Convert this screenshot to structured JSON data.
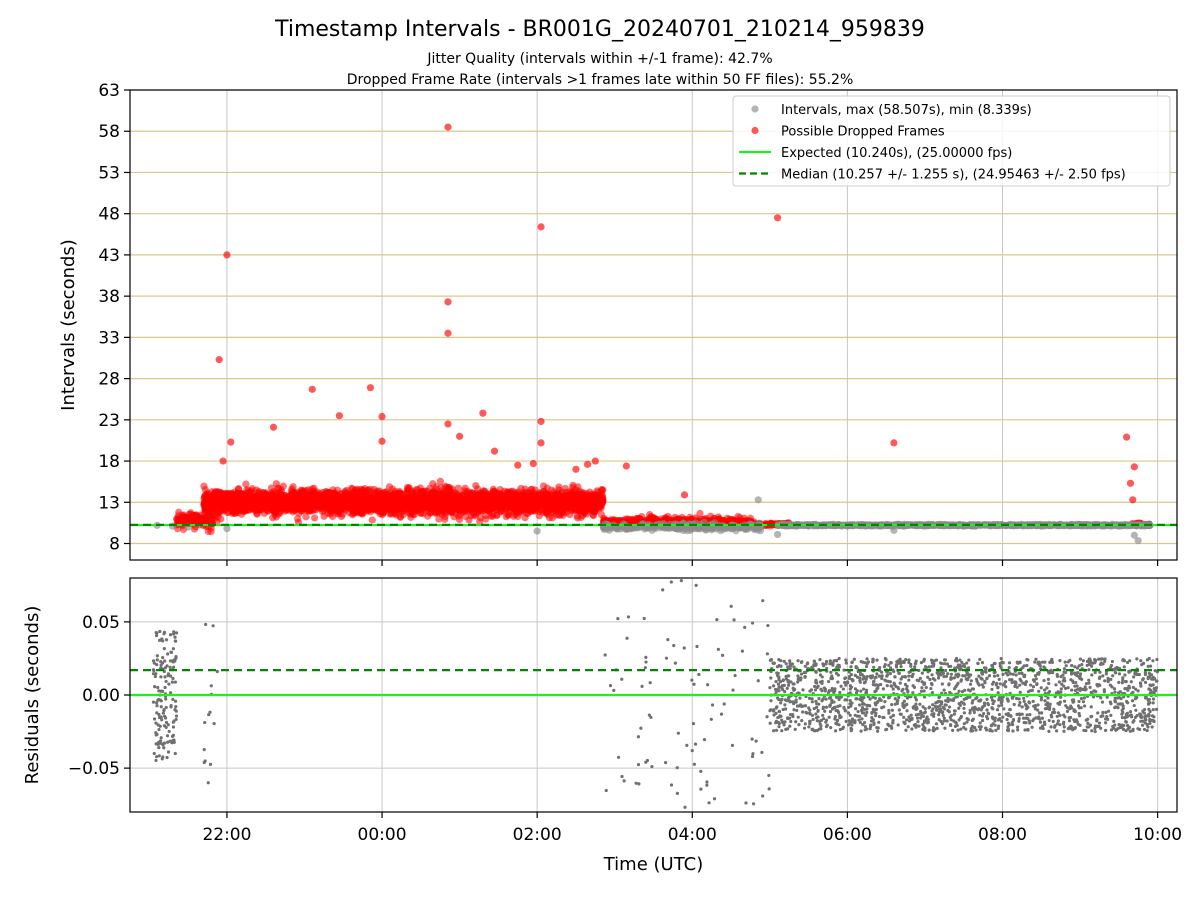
{
  "chart_data": [
    {
      "type": "scatter",
      "title": "Timestamp Intervals - BR001G_20240701_210214_959839",
      "subtitle_lines": [
        "Jitter Quality (intervals within +/-1 frame): 42.7%",
        "Dropped Frame Rate (intervals >1 frames late within 50 FF files): 55.2%"
      ],
      "ylabel": "Intervals (seconds)",
      "ylim": [
        6,
        63
      ],
      "yticks": [
        8,
        13,
        18,
        23,
        28,
        33,
        38,
        43,
        48,
        53,
        58,
        63
      ],
      "xlim_hours": [
        -3.25,
        10.25
      ],
      "xticks_hours": [
        -2,
        0,
        2,
        4,
        6,
        8,
        10
      ],
      "xtick_labels": [
        "22:00",
        "00:00",
        "02:00",
        "04:00",
        "06:00",
        "08:00",
        "10:00"
      ],
      "grid": true,
      "legend_placement": "top-right",
      "colors": {
        "intervals": "#8c8c8c",
        "dropped": "#ff0000",
        "expected": "#22ee22",
        "median": "#008800"
      },
      "legend": [
        {
          "label": "Intervals, max (58.507s), min (8.339s)",
          "kind": "marker",
          "color": "#8c8c8c"
        },
        {
          "label": "Possible Dropped Frames",
          "kind": "marker",
          "color": "#ff0000"
        },
        {
          "label": "Expected (10.240s), (25.00000 fps)",
          "kind": "solid",
          "color": "#22ee22"
        },
        {
          "label": "Median (10.257 +/- 1.255 s), (24.95463 +/- 2.50 fps)",
          "kind": "dashed",
          "color": "#008800"
        }
      ],
      "expected_line": 10.24,
      "median_line": 10.257,
      "series": [
        {
          "name": "Intervals, max (58.507s), min (8.339s)",
          "x_hours": [
            -2.9,
            -2.7,
            -2.5,
            -2.0,
            2.0,
            2.95,
            3.3,
            3.6,
            3.9,
            4.2,
            4.5,
            4.8,
            4.85,
            5.1,
            5.5,
            6.0,
            6.5,
            6.6,
            7.0,
            7.5,
            8.0,
            8.5,
            9.0,
            9.5,
            9.7,
            9.75,
            9.9
          ],
          "y": [
            10.2,
            10.1,
            10.0,
            9.8,
            9.5,
            10.0,
            9.9,
            10.1,
            9.9,
            10.0,
            10.1,
            9.7,
            13.3,
            9.1,
            10.2,
            10.1,
            10.2,
            9.6,
            10.2,
            10.1,
            10.2,
            10.1,
            10.2,
            10.1,
            9.0,
            8.34,
            10.2
          ]
        },
        {
          "name": "Possible Dropped Frames",
          "x_hours": [
            -2.1,
            -2.0,
            -2.05,
            -1.95,
            0.85,
            0.85,
            0.85,
            0.85,
            2.05,
            2.05,
            2.05,
            -1.4,
            -0.9,
            -0.55,
            -0.15,
            0,
            0,
            1.0,
            1.3,
            1.45,
            1.75,
            1.95,
            2.5,
            2.65,
            2.75,
            3.15,
            3.9,
            5.1,
            6.6,
            9.6,
            9.7,
            9.65,
            9.68
          ],
          "y": [
            30.3,
            43.0,
            18.0,
            20.3,
            58.5,
            37.3,
            33.5,
            22.5,
            46.4,
            22.8,
            20.2,
            22.1,
            26.7,
            23.5,
            26.9,
            23.4,
            20.4,
            21.0,
            23.8,
            19.2,
            17.5,
            17.7,
            17.0,
            17.6,
            18.0,
            17.4,
            13.9,
            47.5,
            20.2,
            20.9,
            17.3,
            15.3,
            13.3
          ]
        }
      ],
      "clusters": [
        {
          "series": "Possible Dropped Frames",
          "x_range_hours": [
            -2.3,
            2.85
          ],
          "y_center": 13.0,
          "y_spread": 1.3,
          "count": 3300
        },
        {
          "series": "Possible Dropped Frames",
          "x_range_hours": [
            -2.65,
            -2.15
          ],
          "y_center": 10.8,
          "y_spread": 0.8,
          "count": 120
        },
        {
          "series": "Possible Dropped Frames",
          "x_range_hours": [
            2.85,
            4.8
          ],
          "y_center": 10.6,
          "y_spread": 0.5,
          "count": 420
        },
        {
          "series": "Possible Dropped Frames",
          "x_range_hours": [
            4.8,
            5.25
          ],
          "y_center": 10.3,
          "y_spread": 0.2,
          "count": 80
        },
        {
          "series": "Possible Dropped Frames",
          "x_range_hours": [
            9.65,
            9.9
          ],
          "y_center": 10.3,
          "y_spread": 0.15,
          "count": 40
        },
        {
          "series": "Intervals, max (58.507s), min (8.339s)",
          "x_range_hours": [
            2.85,
            4.9
          ],
          "y_center": 10.0,
          "y_spread": 0.35,
          "count": 260
        },
        {
          "series": "Intervals, max (58.507s), min (8.339s)",
          "x_range_hours": [
            5.1,
            9.9
          ],
          "y_center": 10.22,
          "y_spread": 0.08,
          "count": 900
        }
      ]
    },
    {
      "type": "scatter",
      "ylabel": "Residuals (seconds)",
      "xlabel": "Time (UTC)",
      "ylim": [
        -0.08,
        0.08
      ],
      "yticks": [
        -0.05,
        0.0,
        0.05
      ],
      "ytick_labels": [
        "−0.05",
        "0.00",
        "0.05"
      ],
      "xlim_hours": [
        -3.25,
        10.25
      ],
      "xticks_hours": [
        -2,
        0,
        2,
        4,
        6,
        8,
        10
      ],
      "xtick_labels": [
        "22:00",
        "00:00",
        "02:00",
        "04:00",
        "06:00",
        "08:00",
        "10:00"
      ],
      "grid": true,
      "expected_line": 0.0,
      "median_line": 0.017,
      "clusters": [
        {
          "x_range_hours": [
            -2.95,
            -2.65
          ],
          "y_center": 0.0,
          "y_spread": 0.045,
          "count": 150
        },
        {
          "x_range_hours": [
            -2.3,
            -2.1
          ],
          "y_center": 0.0,
          "y_spread": 0.06,
          "count": 14
        },
        {
          "x_range_hours": [
            2.85,
            5.0
          ],
          "y_center": 0.0,
          "y_spread": 0.08,
          "count": 90
        },
        {
          "x_range_hours": [
            5.0,
            10.0
          ],
          "y_center": 0.0,
          "y_spread": 0.025,
          "count": 1800
        }
      ]
    }
  ]
}
